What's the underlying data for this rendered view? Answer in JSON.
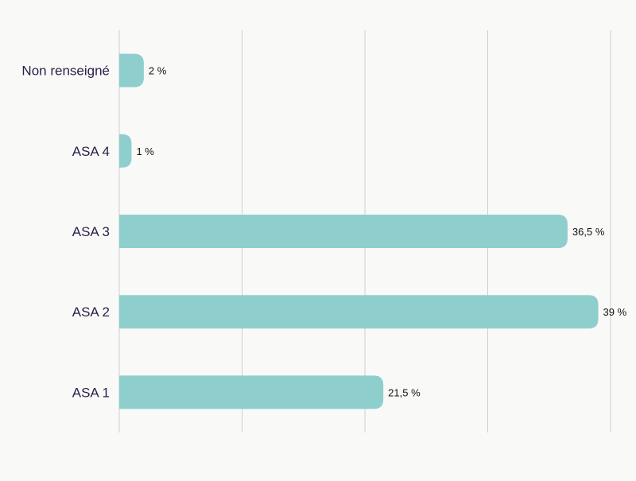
{
  "chart_data": {
    "type": "bar",
    "orientation": "horizontal",
    "categories": [
      "Non renseigné",
      "ASA 4",
      "ASA 3",
      "ASA 2",
      "ASA 1"
    ],
    "values": [
      2,
      1,
      36.5,
      39,
      21.5
    ],
    "value_labels": [
      "2 %",
      "1 %",
      "36,5 %",
      "39 %",
      "21,5 %"
    ],
    "xlim": [
      0,
      40
    ],
    "x_gridlines": [
      0,
      10,
      20,
      30,
      40
    ],
    "grid": true,
    "legend": "none",
    "title": "",
    "xlabel": "",
    "ylabel": "",
    "colors": {
      "bar": "#8ecfcd",
      "category_text": "#2c1e45",
      "value_text": "#111111",
      "grid": "#cfcfcf",
      "background": "#f9f9f8"
    }
  }
}
